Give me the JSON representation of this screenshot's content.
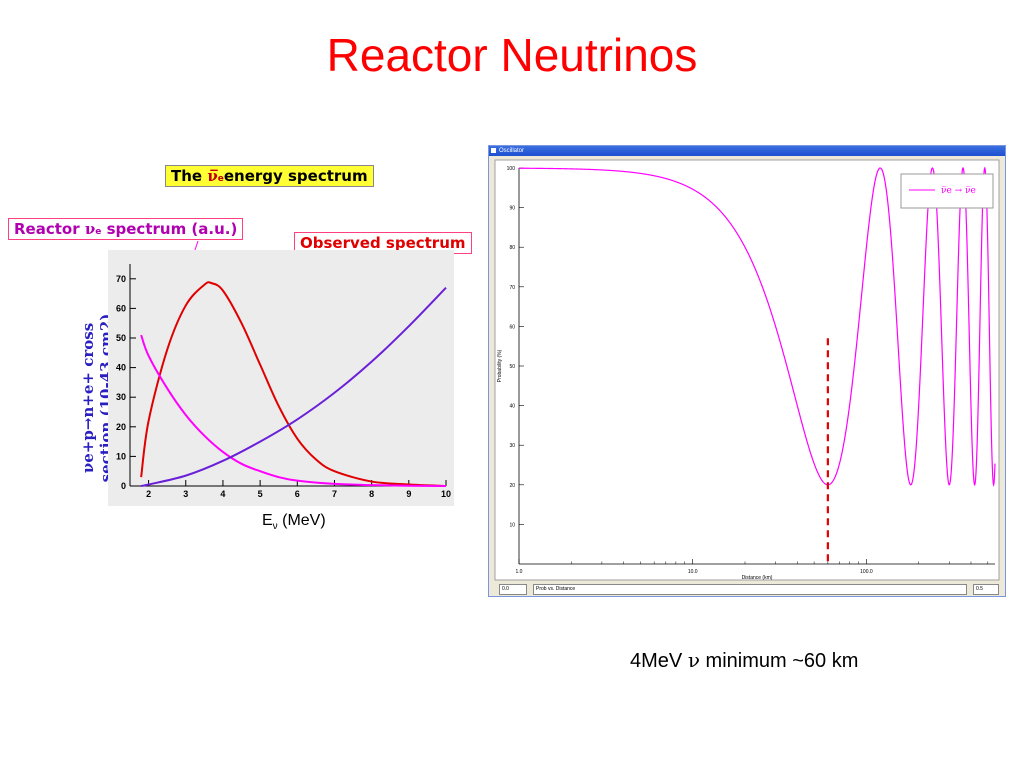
{
  "title": "Reactor Neutrinos",
  "callouts": {
    "energy": {
      "pre": "The ",
      "sym": "ν̅",
      "sub": "e",
      "post": "energy spectrum"
    },
    "reactor": {
      "pre": "Reactor ",
      "sym": "ν",
      "sub": "e",
      "post": " spectrum (a.u.)"
    },
    "observed": "Observed spectrum"
  },
  "ylabel": {
    "line1": "νe+p→n+e+ cross",
    "line2": "section (10-43 cm2)"
  },
  "xlabel": {
    "main": "E",
    "sub": "ν",
    "unit": " (MeV)"
  },
  "window": {
    "title": "Oscillator",
    "legend": "ν̅e → ν̅e",
    "xlabel": "Distance (km)",
    "ylabel": "Probability (%)",
    "status": {
      "field1": "0.0",
      "field2": "Prob vs. Distance",
      "field3": "0.5"
    }
  },
  "caption": {
    "pre": "4MeV ",
    "nu": "ν",
    "post": " minimum ~60 km"
  },
  "colors": {
    "title": "#ff0000",
    "observed": "#e00000",
    "reactor": "#ff00ff",
    "cross_section": "#6a1fd8",
    "marker": "#e00000"
  },
  "chart_data": [
    {
      "type": "line",
      "xlabel": "Eν (MeV)",
      "ylabel": "νe+p→n+e+ cross section (10-43 cm2)",
      "xlim": [
        1.5,
        10
      ],
      "ylim": [
        0,
        75
      ],
      "xticks": [
        2,
        3,
        4,
        5,
        6,
        7,
        8,
        9,
        10
      ],
      "yticks": [
        0,
        10,
        20,
        30,
        40,
        50,
        60,
        70
      ],
      "grid": false,
      "series": [
        {
          "name": "Observed spectrum",
          "color": "#e00000",
          "x": [
            1.8,
            2.0,
            2.5,
            3.0,
            3.5,
            3.7,
            4.0,
            4.5,
            5.0,
            5.5,
            6.0,
            6.5,
            7.0,
            8.0,
            9.0,
            10.0
          ],
          "y": [
            3,
            22,
            46,
            61,
            68,
            68.5,
            66,
            55,
            41,
            27,
            16,
            9,
            5,
            1.5,
            0.5,
            0
          ]
        },
        {
          "name": "Reactor νe spectrum (a.u.)",
          "color": "#ff00ff",
          "x": [
            1.8,
            2.0,
            2.5,
            3.0,
            3.5,
            4.0,
            4.5,
            5.0,
            5.5,
            6.0,
            7.0,
            8.0,
            9.0,
            10.0
          ],
          "y": [
            51,
            44,
            33,
            24,
            17,
            11.5,
            7.5,
            5,
            3,
            1.8,
            0.7,
            0.3,
            0.1,
            0
          ]
        },
        {
          "name": "cross section",
          "color": "#6a1fd8",
          "x": [
            1.8,
            2.0,
            3.0,
            4.0,
            5.0,
            6.0,
            7.0,
            8.0,
            9.0,
            10.0
          ],
          "y": [
            0,
            0.5,
            3.5,
            8.5,
            15,
            22.5,
            31.5,
            42,
            54,
            67
          ]
        }
      ]
    },
    {
      "type": "line",
      "xlabel": "Distance (km)",
      "ylabel": "Probability (%)",
      "xscale": "log",
      "xlim": [
        1.0,
        550
      ],
      "ylim": [
        0,
        100
      ],
      "xticks": [
        1.0,
        10.0,
        100.0
      ],
      "yticks": [
        10,
        20,
        30,
        40,
        50,
        60,
        70,
        80,
        90,
        100
      ],
      "legend_position": "top-right",
      "series": [
        {
          "name": "ν̅e → ν̅e",
          "color": "#ff00ff",
          "model": "survival",
          "amplitude": 0.8,
          "oscillation_length_km": 120
        }
      ],
      "annotation": {
        "type": "vertical-dashed-line",
        "x": 60,
        "color": "#e00000"
      }
    }
  ]
}
